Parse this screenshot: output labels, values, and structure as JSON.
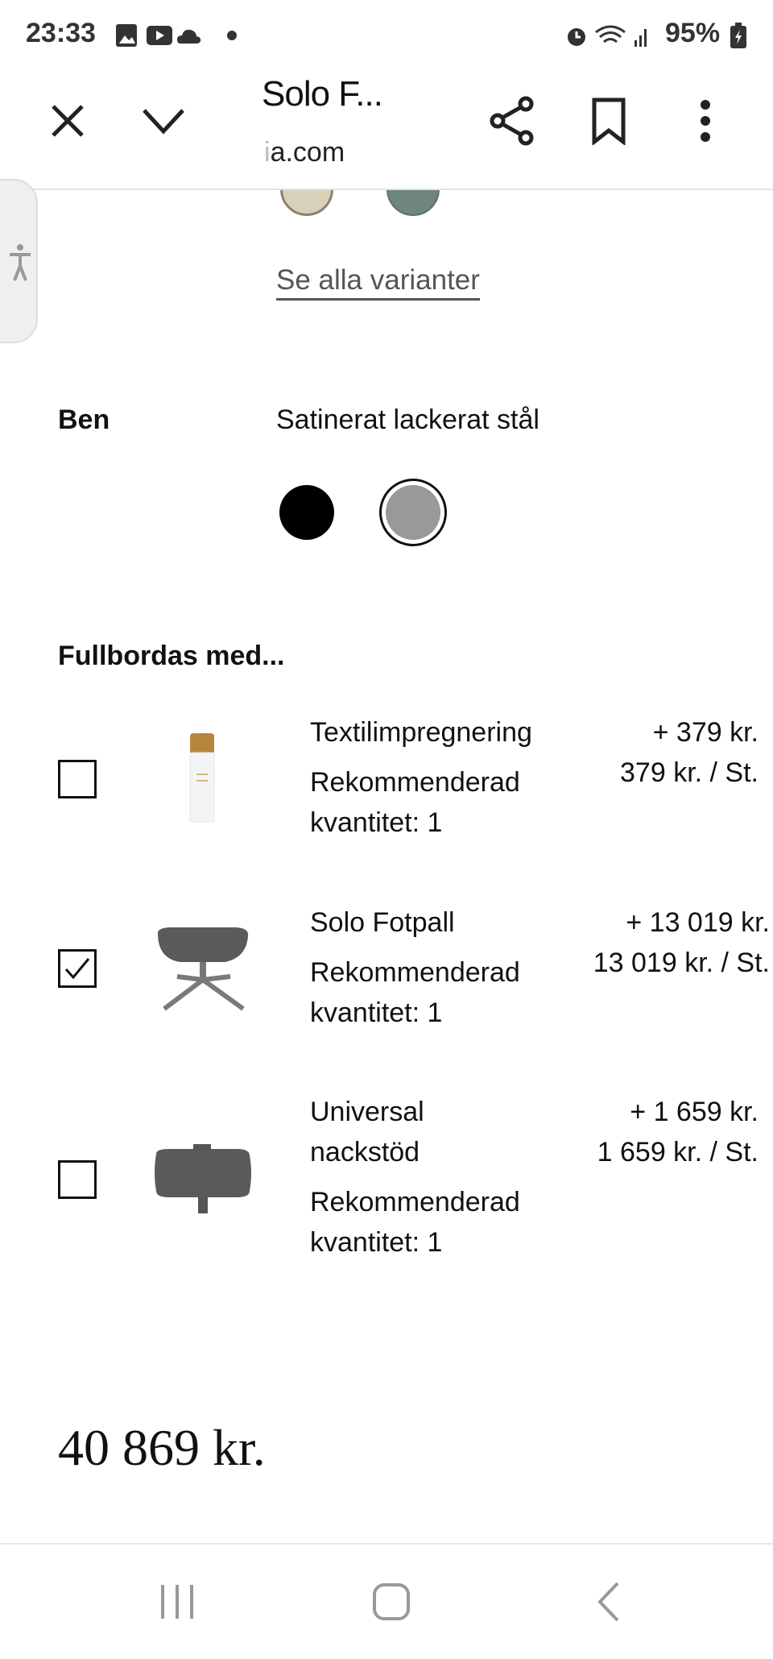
{
  "status_bar": {
    "time": "23:33",
    "battery": "95%",
    "icons": [
      "gallery-icon",
      "youtube-icon",
      "cloud-icon",
      "dot-icon",
      "alarm-icon",
      "wifi-icon",
      "signal-icon",
      "battery-charging-icon"
    ]
  },
  "toolbar": {
    "title": "Solo F...",
    "url_faded": "i",
    "url": "a.com",
    "icons": [
      "close-icon",
      "chevron-down-icon",
      "share-icon",
      "bookmark-icon",
      "more-vert-icon"
    ]
  },
  "fabric": {
    "see_all_label": "Se alla varianter",
    "swatch_colors": [
      "#d8d0b8",
      "#6f8580"
    ]
  },
  "legs": {
    "label": "Ben",
    "value": "Satinerat lackerat stål",
    "options": [
      {
        "color": "#000000",
        "selected": false
      },
      {
        "color": "#999999",
        "selected": true
      }
    ]
  },
  "complete": {
    "heading": "Fullbordas med...",
    "items": [
      {
        "name": "Textilimpregnering",
        "rec": "Rekommenderad",
        "qty": "kvantitet: 1",
        "price": "+ 379 kr.",
        "unit_price": "379 kr. / St.",
        "checked": false
      },
      {
        "name": "Solo Fotpall",
        "rec": "Rekommenderad",
        "qty": "kvantitet: 1",
        "price": "+ 13 019 kr.",
        "unit_price": "13 019 kr. / St.",
        "checked": true
      },
      {
        "name": "Universal",
        "name2": "nackstöd",
        "rec": "Rekommenderad",
        "qty": "kvantitet: 1",
        "price": "+ 1 659 kr.",
        "unit_price": "1 659 kr. / St.",
        "checked": false
      }
    ]
  },
  "total": "40 869 kr.",
  "nav": {
    "icons": [
      "recent-apps-icon",
      "home-icon",
      "back-icon"
    ]
  }
}
